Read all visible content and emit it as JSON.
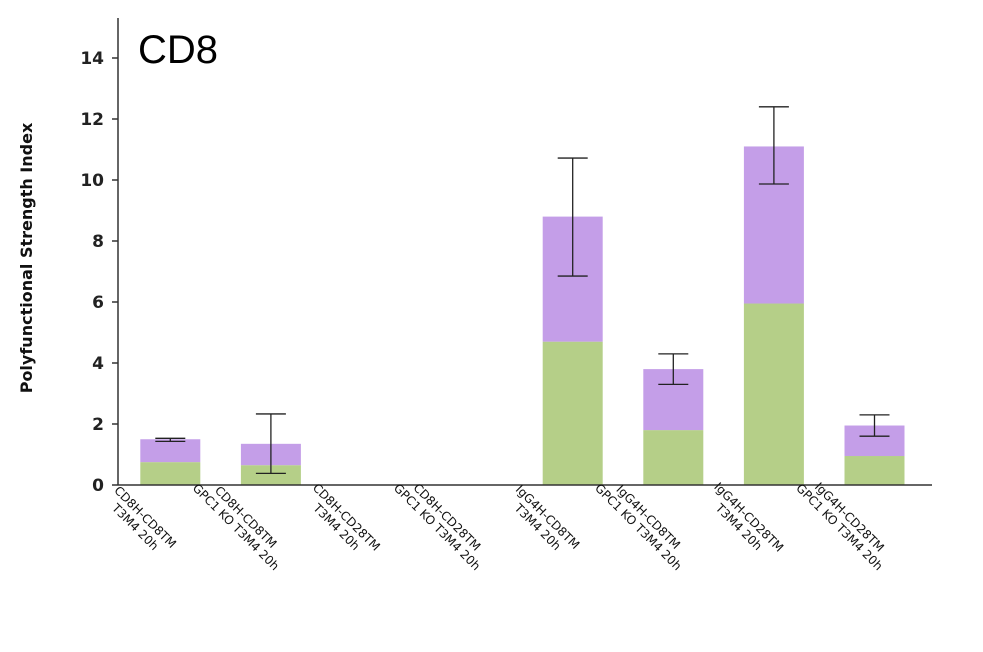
{
  "chart_data": {
    "type": "bar",
    "stacked": true,
    "title": "CD8",
    "ylabel": "Polyfunctional Strength Index",
    "ylim": [
      0,
      15
    ],
    "yticks": [
      "0",
      "2",
      "4",
      "6",
      "8",
      "10",
      "12",
      "14"
    ],
    "categories": [
      [
        "CD8H-CD8TM",
        "T3M4 20h"
      ],
      [
        "CD8H-CD8TM",
        "GPC1 KO T3M4 20h"
      ],
      [
        "CD8H-CD28TM",
        "T3M4 20h"
      ],
      [
        "CD8H-CD28TM",
        "GPC1 KO T3M4 20h"
      ],
      [
        "IgG4H-CD8TM",
        "T3M4 20h"
      ],
      [
        "IgG4H-CD8TM",
        "GPC1 KO T3M4 20h"
      ],
      [
        "IgG4H-CD28TM",
        "T3M4 20h"
      ],
      [
        "IgG4H-CD28TM",
        "GPC1 KO T3M4 20h"
      ]
    ],
    "series": [
      {
        "color": "#b5cf88",
        "values": [
          0.75,
          0.65,
          0,
          0,
          4.7,
          1.8,
          5.95,
          0.95
        ]
      },
      {
        "color": "#c49ee8",
        "values": [
          0.75,
          0.7,
          0,
          0,
          4.1,
          2.0,
          5.15,
          1.0
        ]
      }
    ],
    "error_bars": [
      [
        1.43,
        1.53
      ],
      [
        0.38,
        2.33
      ],
      null,
      null,
      [
        6.85,
        10.72
      ],
      [
        3.3,
        4.3
      ],
      [
        9.87,
        12.4
      ],
      [
        1.6,
        2.3
      ]
    ],
    "grid": false,
    "legend": "none"
  }
}
